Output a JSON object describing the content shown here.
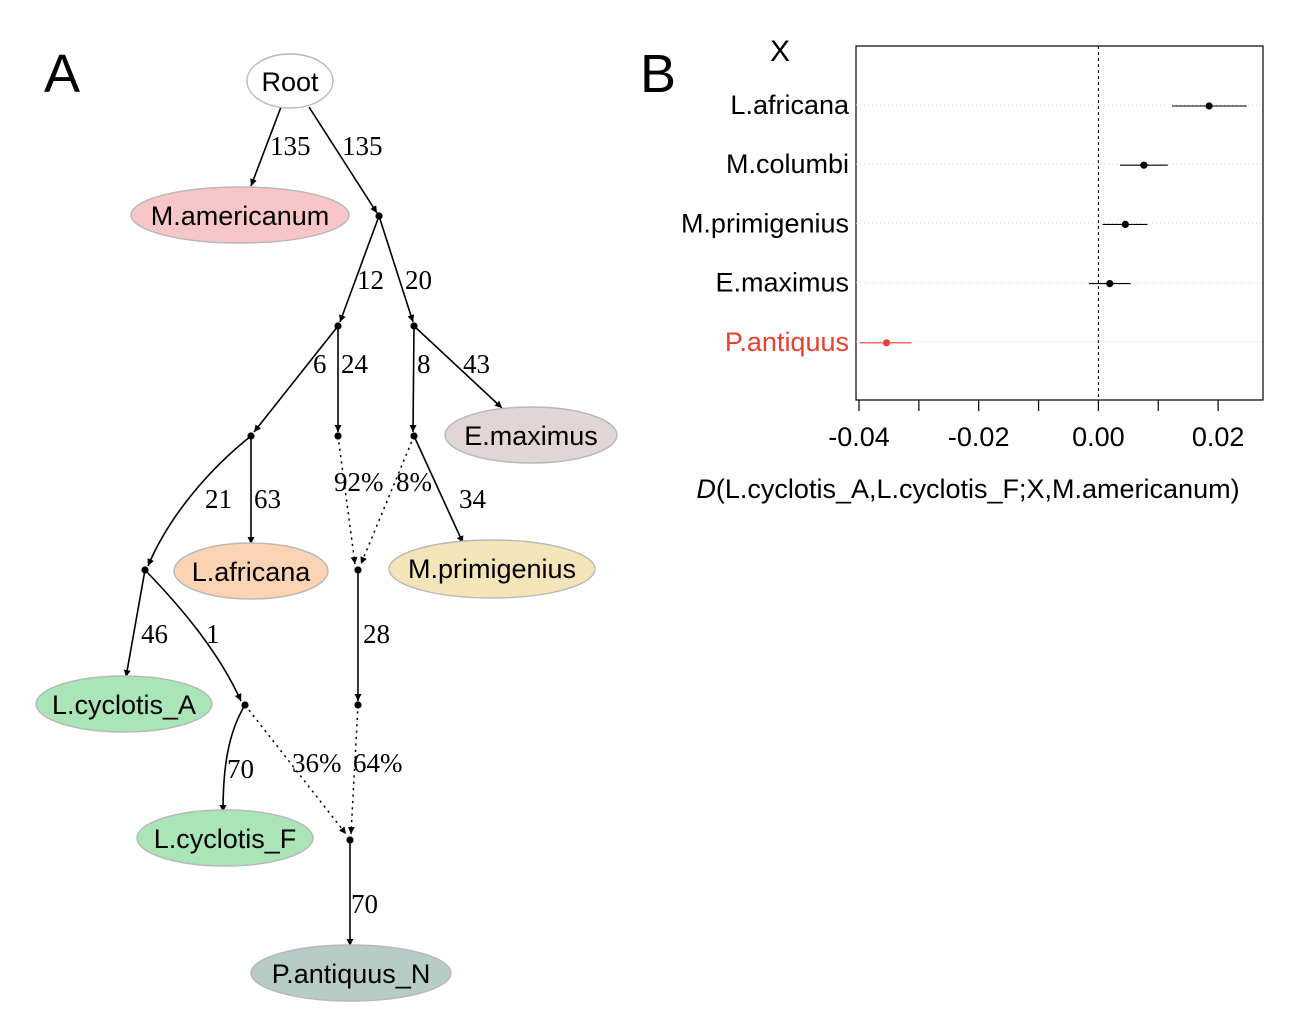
{
  "panel_a": {
    "letter": "A",
    "nodes": {
      "root": "Root",
      "m_americanum": "M.americanum",
      "e_maximus": "E.maximus",
      "l_africana": "L.africana",
      "m_primigenius": "M.primigenius",
      "l_cyclotis_a": "L.cyclotis_A",
      "l_cyclotis_f": "L.cyclotis_F",
      "p_antiquus_n": "P.antiquus_N"
    },
    "colors": {
      "root": "#ffffff",
      "m_americanum": "#f8c6c6",
      "e_maximus": "#e1d5d5",
      "l_africana": "#fcd3b3",
      "m_primigenius": "#f3e5b8",
      "l_cyclotis_a": "#a9e5b6",
      "l_cyclotis_f": "#a9e5b6",
      "p_antiquus_n": "#b7cbc7"
    },
    "edges": {
      "root_to_mam": "135",
      "root_to_n1": "135",
      "n1_to_n2": "12",
      "n1_to_n3": "20",
      "n2_to_n4": "6",
      "n2_to_n5": "24",
      "n3_to_n6": "8",
      "n3_to_emax": "43",
      "n4_to_n7": "21",
      "n4_to_lafr": "63",
      "n6_to_mpri": "34",
      "n8_to_n9": "28",
      "n7_to_lcya": "46",
      "n7_to_n10": "1",
      "n10_to_lcyf": "70",
      "n11_to_pant": "70"
    },
    "admixture": {
      "n5_weight": "92%",
      "n6_weight": "8%",
      "n10_weight": "36%",
      "n9_weight": "64%"
    }
  },
  "panel_b": {
    "letter": "B",
    "x_header": "X",
    "xlabel_italic": "D",
    "xlabel_rest": "(L.cyclotis_A,L.cyclotis_F;X,M.americanum)",
    "highlight_color": "#e8412c",
    "default_color": "#000000"
  },
  "chart_data": {
    "type": "scatter",
    "title": "",
    "xlabel": "D(L.cyclotis_A,L.cyclotis_F;X,M.americanum)",
    "ylabel": "X",
    "xlim": [
      -0.0405,
      0.0275
    ],
    "xticks": [
      -0.04,
      -0.02,
      0.0,
      0.02
    ],
    "xtick_labels": [
      "-0.04",
      "-0.02",
      "0.00",
      "0.02"
    ],
    "minor_ticks": [
      -0.03,
      -0.01,
      0.01
    ],
    "reference_line": 0,
    "grid": false,
    "categories": [
      "L.africana",
      "M.columbi",
      "M.primigenius",
      "E.maximus",
      "P.antiquus"
    ],
    "values": [
      0.0185,
      0.0076,
      0.0045,
      0.0019,
      -0.0354
    ],
    "ci_low": [
      0.0123,
      0.0036,
      0.0007,
      -0.0016,
      -0.0399
    ],
    "ci_high": [
      0.0248,
      0.0116,
      0.0082,
      0.0054,
      -0.0312
    ],
    "highlighted": [
      "P.antiquus"
    ]
  }
}
